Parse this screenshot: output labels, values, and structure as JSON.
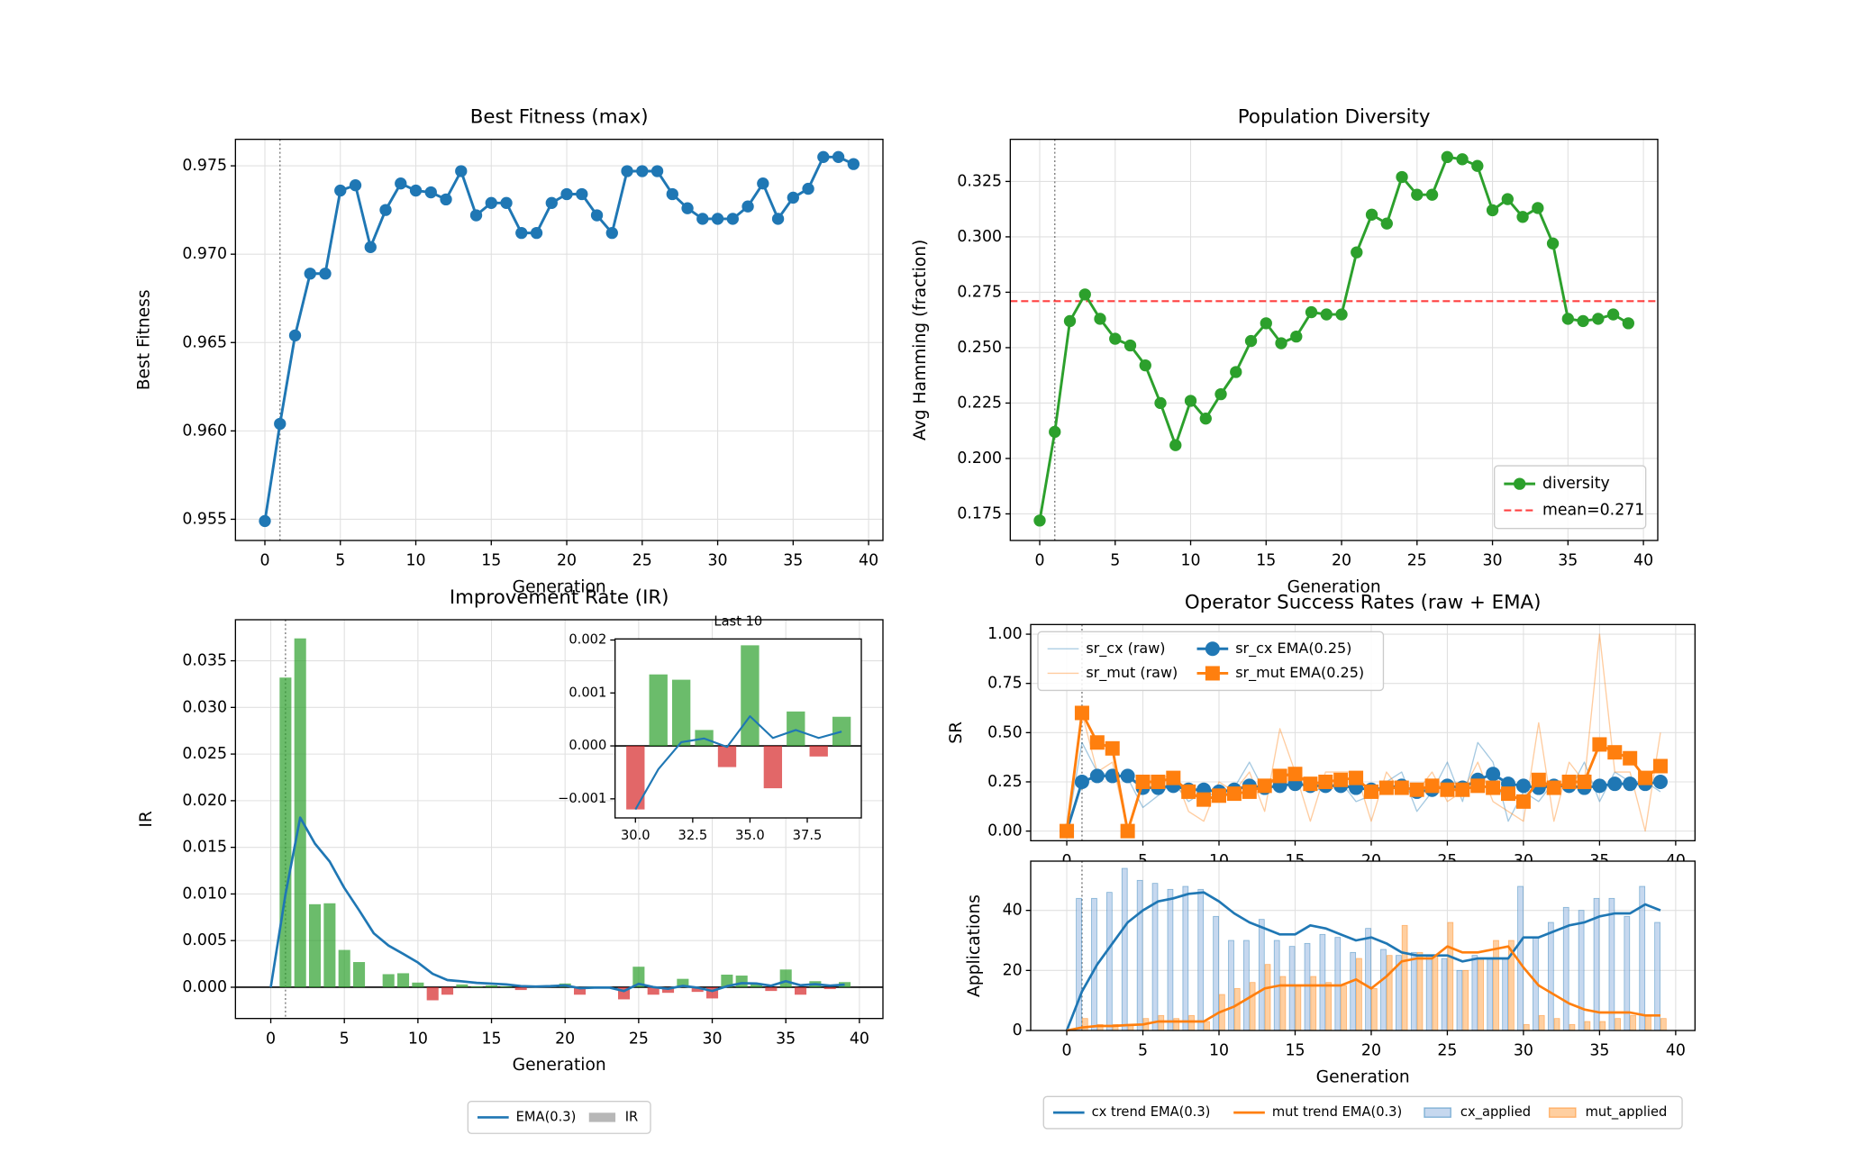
{
  "chart_data": [
    {
      "type": "line",
      "title": "Best Fitness (max)",
      "xlabel": "Generation",
      "ylabel": "Best Fitness",
      "grid": true,
      "vline": 1,
      "x": [
        0,
        1,
        2,
        3,
        4,
        5,
        6,
        7,
        8,
        9,
        10,
        11,
        12,
        13,
        14,
        15,
        16,
        17,
        18,
        19,
        20,
        21,
        22,
        23,
        24,
        25,
        26,
        27,
        28,
        29,
        30,
        31,
        32,
        33,
        34,
        35,
        36,
        37,
        38,
        39
      ],
      "series": [
        {
          "color": "#1f77b4",
          "marker": "o",
          "linewidth": 2.2,
          "values": [
            0.9549,
            0.9604,
            0.9654,
            0.9689,
            0.9689,
            0.9736,
            0.9739,
            0.9704,
            0.9725,
            0.974,
            0.9736,
            0.9735,
            0.9731,
            0.9747,
            0.9722,
            0.9729,
            0.9729,
            0.9712,
            0.9712,
            0.9729,
            0.9734,
            0.9734,
            0.9722,
            0.9712,
            0.9747,
            0.9747,
            0.9747,
            0.9734,
            0.9726,
            0.972,
            0.972,
            0.972,
            0.9727,
            0.974,
            0.972,
            0.9732,
            0.9737,
            0.9755,
            0.9755,
            0.9751
          ]
        }
      ],
      "xlim": [
        -1.95,
        40.95
      ],
      "xticks": [
        0,
        5,
        10,
        15,
        20,
        25,
        30,
        35,
        40
      ],
      "ylim": [
        0.9538,
        0.9765
      ],
      "yticks": [
        0.955,
        {
          "value": 0.96,
          "label": "0.960"
        },
        0.965,
        {
          "value": 0.97,
          "label": "0.970"
        },
        0.975
      ]
    },
    {
      "type": "line",
      "title": "Population Diversity",
      "xlabel": "Generation",
      "ylabel": "Avg Hamming (fraction)",
      "grid": true,
      "vline": 1,
      "legend": {
        "loc": "lower right",
        "ncol": 1
      },
      "x": [
        0,
        1,
        2,
        3,
        4,
        5,
        6,
        7,
        8,
        9,
        10,
        11,
        12,
        13,
        14,
        15,
        16,
        17,
        18,
        19,
        20,
        21,
        22,
        23,
        24,
        25,
        26,
        27,
        28,
        29,
        30,
        31,
        32,
        33,
        34,
        35,
        36,
        37,
        38,
        39
      ],
      "series": [
        {
          "name": "diversity",
          "color": "#2ca02c",
          "marker": "o",
          "linewidth": 2.2,
          "values": [
            0.172,
            0.212,
            0.262,
            0.274,
            0.263,
            0.254,
            0.251,
            0.242,
            0.225,
            0.206,
            0.226,
            0.218,
            0.229,
            0.239,
            0.253,
            0.261,
            0.252,
            0.255,
            0.266,
            0.265,
            0.265,
            0.293,
            0.31,
            0.306,
            0.327,
            0.319,
            0.319,
            0.336,
            0.335,
            0.332,
            0.312,
            0.317,
            0.309,
            0.313,
            0.297,
            0.263,
            0.262,
            0.263,
            0.265,
            0.261
          ]
        },
        {
          "name": "mean=0.271",
          "kind": "hline",
          "value": 0.271,
          "color": "#ff0000",
          "alpha": 0.75,
          "linestyle": "--",
          "linewidth": 1.6
        }
      ],
      "xlim": [
        -1.95,
        40.95
      ],
      "xticks": [
        0,
        5,
        10,
        15,
        20,
        25,
        30,
        35,
        40
      ],
      "ylim": [
        0.163,
        0.344
      ],
      "yticks": [
        0.175,
        {
          "value": 0.2,
          "label": "0.200"
        },
        0.225,
        {
          "value": 0.25,
          "label": "0.250"
        },
        0.275,
        {
          "value": 0.3,
          "label": "0.300"
        },
        0.325
      ]
    },
    {
      "type": "bar",
      "title": "Improvement Rate (IR)",
      "xlabel": "Generation",
      "ylabel": "IR",
      "grid": true,
      "vline": 1,
      "zero_line": true,
      "legend": {
        "loc": "below",
        "ncol": 2
      },
      "x": [
        0,
        1,
        2,
        3,
        4,
        5,
        6,
        7,
        8,
        9,
        10,
        11,
        12,
        13,
        14,
        15,
        16,
        17,
        18,
        19,
        20,
        21,
        22,
        23,
        24,
        25,
        26,
        27,
        28,
        29,
        30,
        31,
        32,
        33,
        34,
        35,
        36,
        37,
        38,
        39
      ],
      "series": [
        {
          "name": "EMA(0.3)",
          "kind": "line",
          "color": "#1f77b4",
          "linewidth": 2,
          "values": [
            0,
            0.00996,
            0.01819,
            0.0154,
            0.01348,
            0.01064,
            0.00826,
            0.00578,
            0.00447,
            0.00358,
            0.00265,
            0.00144,
            0.00077,
            0.00063,
            0.00047,
            0.00039,
            0.0003,
            0.00012,
            8e-05,
            0.00012,
            0.0002,
            -0.0001,
            -4e-05,
            -3e-05,
            -0.00041,
            0.00037,
            2e-05,
            -0.00017,
            0.00015,
            -5e-05,
            -0.0004,
            0.00011,
            0.00044,
            0.0004,
            0.00016,
            0.00065,
            0.00021,
            0.00033,
            0.00017,
            0.00028
          ]
        },
        {
          "name": "IR",
          "kind": "bar",
          "color": "#2ca02c",
          "negative_color": "#d62728",
          "legend_color": "#999999",
          "alpha": 0.7,
          "values": [
            0,
            0.0332,
            0.0374,
            0.0089,
            0.009,
            0.004,
            0.0027,
            0,
            0.0014,
            0.0015,
            0.0005,
            -0.0014,
            -0.0008,
            0.0003,
            0.0001,
            0.0002,
            0.0001,
            -0.0003,
            0,
            0.0002,
            0.0004,
            -0.0008,
            0.0001,
            0,
            -0.0013,
            0.0022,
            -0.0008,
            -0.0006,
            0.0009,
            -0.0005,
            -0.0012,
            0.00135,
            0.00125,
            0.0003,
            -0.0004,
            0.0019,
            -0.0008,
            0.00065,
            -0.0002,
            0.00055
          ]
        }
      ],
      "xlim": [
        -2.4,
        41.6
      ],
      "xticks": [
        0,
        5,
        10,
        15,
        20,
        25,
        30,
        35,
        40
      ],
      "ylim": [
        -0.00335,
        0.0394
      ],
      "yticks": [
        {
          "value": 0,
          "label": "0.000"
        },
        0.005,
        {
          "value": 0.01,
          "label": "0.010"
        },
        0.015,
        {
          "value": 0.02,
          "label": "0.020"
        },
        0.025,
        {
          "value": 0.03,
          "label": "0.030"
        },
        0.035
      ]
    },
    {
      "type": "bar",
      "title": "Last 10",
      "zero_line": true,
      "x": [
        30,
        31,
        32,
        33,
        34,
        35,
        36,
        37,
        38,
        39
      ],
      "series": [
        {
          "kind": "bar",
          "color": "#2ca02c",
          "negative_color": "#d62728",
          "alpha": 0.7,
          "values": [
            -0.0012,
            0.00135,
            0.00125,
            0.0003,
            -0.0004,
            0.0019,
            -0.0008,
            0.00065,
            -0.0002,
            0.00055
          ]
        },
        {
          "kind": "line",
          "color": "#1f77b4",
          "linewidth": 1.6,
          "values": [
            -0.0012,
            -0.00044,
            7e-05,
            0.00014,
            -2e-05,
            0.00056,
            0.00015,
            0.0003,
            0.00015,
            0.00027
          ]
        }
      ],
      "xlim": [
        29.11,
        39.86
      ],
      "xticks": [
        {
          "value": 30,
          "label": "30.0"
        },
        32.5,
        {
          "value": 35,
          "label": "35.0"
        },
        37.5
      ],
      "ylim": [
        -0.00136,
        0.00202
      ],
      "yticks": [
        {
          "value": -0.001,
          "label": "−0.001"
        },
        {
          "value": 0,
          "label": "0.000"
        },
        0.001,
        0.002
      ]
    },
    {
      "type": "line",
      "title": "Operator Success Rates (raw + EMA)",
      "ylabel": "SR",
      "grid": true,
      "vline": 1,
      "legend": {
        "loc": "upper left",
        "ncol": 2
      },
      "x": [
        0,
        1,
        2,
        3,
        4,
        5,
        6,
        7,
        8,
        9,
        10,
        11,
        12,
        13,
        14,
        15,
        16,
        17,
        18,
        19,
        20,
        21,
        22,
        23,
        24,
        25,
        26,
        27,
        28,
        29,
        30,
        31,
        32,
        33,
        34,
        35,
        36,
        37,
        38,
        39
      ],
      "series": [
        {
          "name": "sr_cx (raw)",
          "color": "#1f77b4",
          "alpha": 0.4,
          "linewidth": 1,
          "values": [
            0,
            0.45,
            0.3,
            0.28,
            0.27,
            0.12,
            0.18,
            0.25,
            0.15,
            0.2,
            0.17,
            0.22,
            0.35,
            0.2,
            0.3,
            0.28,
            0.2,
            0.22,
            0.25,
            0.15,
            0.18,
            0.25,
            0.3,
            0.1,
            0.2,
            0.35,
            0.15,
            0.45,
            0.35,
            0.05,
            0.2,
            0.15,
            0.25,
            0.2,
            0.35,
            0.15,
            0.3,
            0.25,
            0.25,
            0.2
          ]
        },
        {
          "name": "sr_mut (raw)",
          "color": "#ff7f0e",
          "alpha": 0.4,
          "linewidth": 1,
          "values": [
            0,
            0.6,
            0.3,
            0.35,
            0,
            0.25,
            0.25,
            0.3,
            0.1,
            0.05,
            0.25,
            0.2,
            0.3,
            0.1,
            0.52,
            0.3,
            0.05,
            0.3,
            0.3,
            0.3,
            0.05,
            0.3,
            0.2,
            0.2,
            0.3,
            0.15,
            0.2,
            0.35,
            0.15,
            0.1,
            0.05,
            0.55,
            0.05,
            0.35,
            0.25,
            1.0,
            0.3,
            0.3,
            0.0,
            0.5
          ]
        },
        {
          "name": "sr_cx EMA(0.25)",
          "color": "#1f77b4",
          "marker": "o",
          "linewidth": 2.2,
          "values": [
            0,
            0.25,
            0.28,
            0.28,
            0.28,
            0.22,
            0.22,
            0.23,
            0.21,
            0.21,
            0.2,
            0.21,
            0.23,
            0.22,
            0.23,
            0.24,
            0.23,
            0.23,
            0.23,
            0.22,
            0.21,
            0.22,
            0.23,
            0.2,
            0.21,
            0.23,
            0.22,
            0.26,
            0.29,
            0.24,
            0.23,
            0.22,
            0.23,
            0.23,
            0.22,
            0.23,
            0.24,
            0.24,
            0.24,
            0.25
          ]
        },
        {
          "name": "sr_mut EMA(0.25)",
          "color": "#ff7f0e",
          "marker": "s",
          "linewidth": 2.2,
          "values": [
            0,
            0.6,
            0.45,
            0.42,
            0,
            0.25,
            0.25,
            0.27,
            0.2,
            0.16,
            0.18,
            0.19,
            0.2,
            0.23,
            0.28,
            0.29,
            0.24,
            0.25,
            0.26,
            0.27,
            0.2,
            0.22,
            0.22,
            0.21,
            0.23,
            0.21,
            0.21,
            0.23,
            0.22,
            0.19,
            0.15,
            0.26,
            0.22,
            0.25,
            0.25,
            0.44,
            0.4,
            0.37,
            0.27,
            0.33
          ]
        }
      ],
      "xlim": [
        -2.37,
        41.27
      ],
      "xticks": [
        0,
        5,
        10,
        15,
        20,
        25,
        30,
        35,
        40
      ],
      "ylim": [
        -0.049,
        1.049
      ],
      "yticks": [
        {
          "value": 0,
          "label": "0.00"
        },
        0.25,
        {
          "value": 0.5,
          "label": "0.50"
        },
        0.75,
        {
          "value": 1,
          "label": "1.00"
        }
      ]
    },
    {
      "type": "bar",
      "xlabel": "Generation",
      "ylabel": "Applications",
      "grid": true,
      "vline": 1,
      "legend": {
        "loc": "below",
        "ncol": 4
      },
      "x": [
        0,
        1,
        2,
        3,
        4,
        5,
        6,
        7,
        8,
        9,
        10,
        11,
        12,
        13,
        14,
        15,
        16,
        17,
        18,
        19,
        20,
        21,
        22,
        23,
        24,
        25,
        26,
        27,
        28,
        29,
        30,
        31,
        32,
        33,
        34,
        35,
        36,
        37,
        38,
        39
      ],
      "series": [
        {
          "name": "cx trend EMA(0.3)",
          "kind": "line",
          "color": "#1f77b4",
          "linewidth": 2,
          "values": [
            0,
            13,
            22,
            29,
            36,
            40,
            43,
            44,
            45.5,
            46,
            43,
            39,
            36,
            34,
            32,
            32,
            35,
            34,
            32,
            30,
            31,
            29,
            26,
            25,
            25,
            25,
            23,
            24,
            24,
            24,
            31,
            31,
            33,
            35,
            36,
            38,
            39,
            39,
            42,
            40
          ]
        },
        {
          "name": "mut trend EMA(0.3)",
          "kind": "line",
          "color": "#ff7f0e",
          "linewidth": 2,
          "values": [
            0,
            1,
            1.5,
            1.5,
            1.8,
            2,
            3,
            3,
            3,
            3,
            6,
            8,
            11,
            14,
            15,
            15,
            15,
            15,
            15,
            17,
            14,
            18,
            23,
            24,
            24,
            28,
            26,
            26,
            27,
            28,
            21,
            15,
            12,
            9,
            7,
            6,
            6,
            6,
            5,
            5
          ]
        },
        {
          "name": "cx_applied",
          "kind": "bar",
          "color": "#aec7e8",
          "edgecolor": "#1f77b4",
          "alpha": 0.7,
          "values": [
            0,
            44,
            44,
            46,
            54,
            50,
            49,
            47,
            48,
            47,
            38,
            30,
            30,
            37,
            30,
            28,
            29,
            32,
            31,
            26,
            34,
            27,
            25,
            26,
            25,
            24,
            20,
            25,
            24,
            24,
            48,
            31,
            36,
            41,
            40,
            44,
            44,
            38,
            48,
            36
          ]
        },
        {
          "name": "mut_applied",
          "kind": "bar",
          "color": "#ffbb78",
          "edgecolor": "#ff7f0e",
          "alpha": 0.7,
          "values": [
            0,
            4,
            2,
            2,
            2,
            4,
            5,
            4,
            5,
            3,
            12,
            14,
            16,
            22,
            18,
            15,
            18,
            16,
            15,
            24,
            14,
            25,
            35,
            26,
            25,
            36,
            20,
            24,
            30,
            30,
            2,
            5,
            4,
            2,
            3,
            3,
            4,
            5,
            5,
            4
          ]
        }
      ],
      "xlim": [
        -2.37,
        41.27
      ],
      "xticks": [
        0,
        5,
        10,
        15,
        20,
        25,
        30,
        35,
        40
      ],
      "ylim": [
        0,
        56.4
      ],
      "yticks": [
        0,
        20,
        40
      ]
    }
  ]
}
